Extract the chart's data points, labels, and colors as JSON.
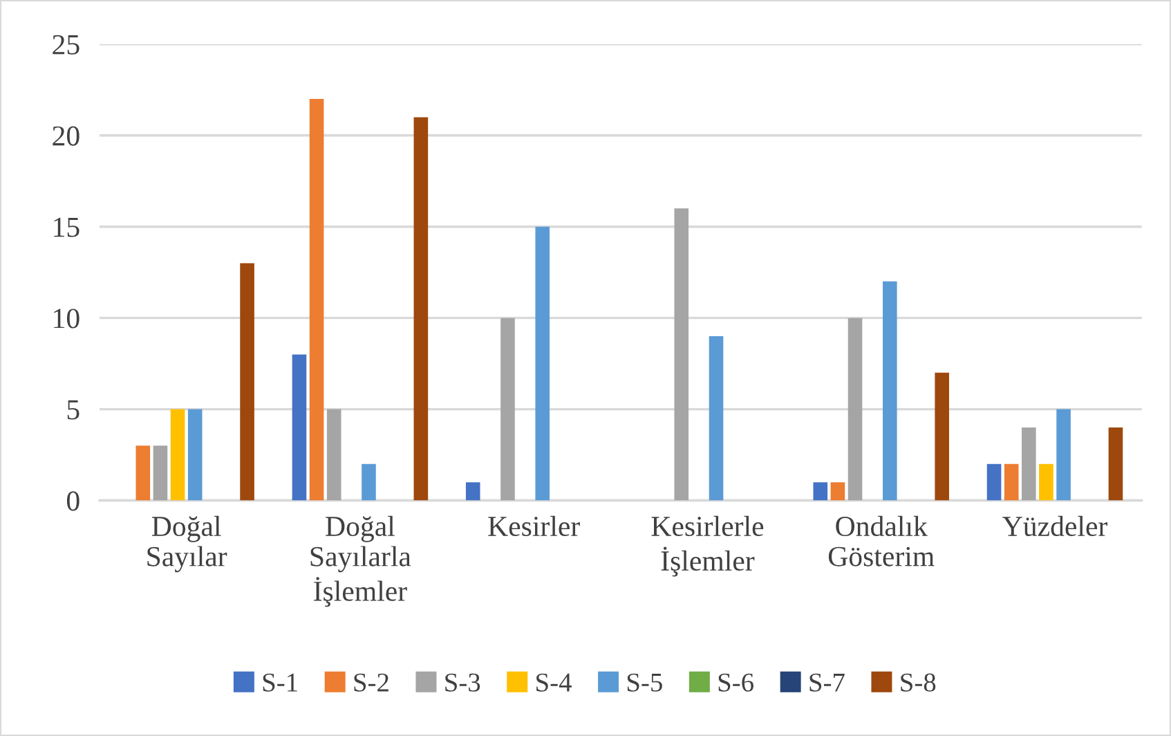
{
  "chart_data": {
    "type": "bar",
    "categories": [
      "Doğal\nSayılar",
      "Doğal\nSayılarla\nİşlemler",
      "Kesirler",
      "Kesirlerle\nİşlemler",
      "Ondalık\nGösterim",
      "Yüzdeler"
    ],
    "series": [
      {
        "name": "S-1",
        "color": "#4472c4",
        "values": [
          0,
          8,
          1,
          0,
          1,
          2
        ]
      },
      {
        "name": "S-2",
        "color": "#ed7d31",
        "values": [
          3,
          22,
          0,
          0,
          1,
          2
        ]
      },
      {
        "name": "S-3",
        "color": "#a5a5a5",
        "values": [
          3,
          5,
          10,
          16,
          10,
          4
        ]
      },
      {
        "name": "S-4",
        "color": "#ffc000",
        "values": [
          5,
          0,
          0,
          0,
          0,
          2
        ]
      },
      {
        "name": "S-5",
        "color": "#5b9bd5",
        "values": [
          5,
          2,
          15,
          9,
          12,
          5
        ]
      },
      {
        "name": "S-6",
        "color": "#70ad47",
        "values": [
          0,
          0,
          0,
          0,
          0,
          0
        ]
      },
      {
        "name": "S-7",
        "color": "#264478",
        "values": [
          0,
          0,
          0,
          0,
          0,
          0
        ]
      },
      {
        "name": "S-8",
        "color": "#9e480e",
        "values": [
          13,
          21,
          0,
          0,
          7,
          4
        ]
      }
    ],
    "ylim": [
      0,
      25
    ],
    "yticks": [
      0,
      5,
      10,
      15,
      20,
      25
    ],
    "grid": "y",
    "legend": "bottom"
  }
}
